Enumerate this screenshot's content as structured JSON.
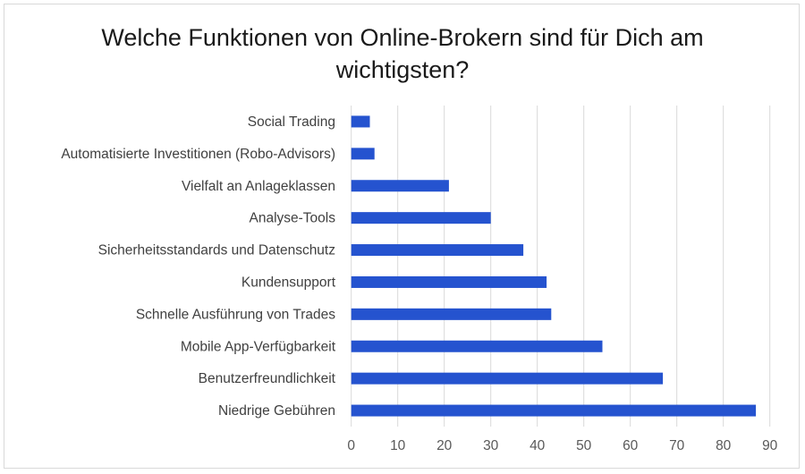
{
  "chart_data": {
    "type": "bar",
    "orientation": "horizontal",
    "title": "Welche Funktionen von Online-Brokern sind für Dich am wichtigsten?",
    "categories": [
      "Social Trading",
      "Automatisierte Investitionen (Robo-Advisors)",
      "Vielfalt an Anlageklassen",
      "Analyse-Tools",
      "Sicherheitsstandards und Datenschutz",
      "Kundensupport",
      "Schnelle Ausführung von Trades",
      "Mobile App-Verfügbarkeit",
      "Benutzerfreundlichkeit",
      "Niedrige Gebühren"
    ],
    "values": [
      4,
      5,
      21,
      30,
      37,
      42,
      43,
      54,
      67,
      87
    ],
    "xlim": [
      0,
      90
    ],
    "xticks": [
      "0",
      "10",
      "20",
      "30",
      "40",
      "50",
      "60",
      "70",
      "80",
      "90"
    ],
    "grid": "vertical",
    "bar_color": "#2553CF",
    "grid_color": "#d9d9d9"
  }
}
